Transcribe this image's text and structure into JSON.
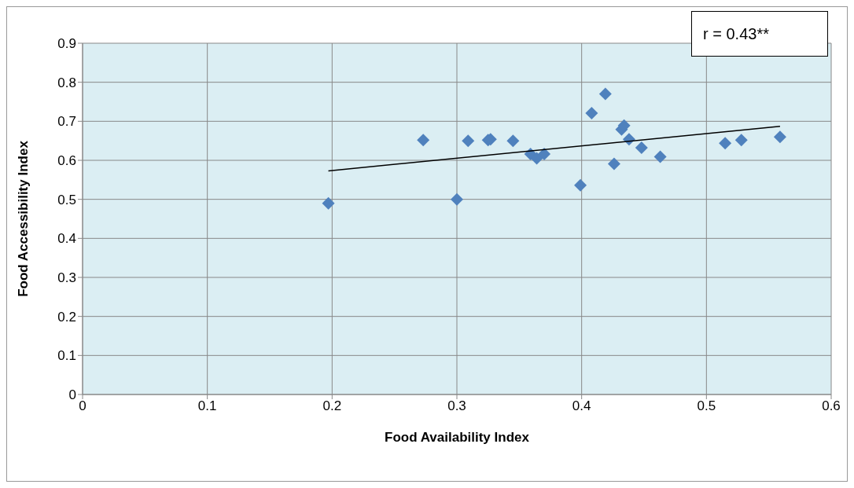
{
  "chart_data": {
    "type": "scatter",
    "xlabel": "Food Availability Index",
    "ylabel": "Food Accessibility Index",
    "annotations": [
      "r = 0.43**"
    ],
    "xlim": [
      0,
      0.6
    ],
    "xticks": [
      0,
      0.1,
      0.2,
      0.3,
      0.4,
      0.5,
      0.6
    ],
    "ylim": [
      0,
      0.9
    ],
    "yticks": [
      0,
      0.1,
      0.2,
      0.3,
      0.4,
      0.5,
      0.6,
      0.7,
      0.8,
      0.9
    ],
    "grid": true,
    "legend": false,
    "series": [
      {
        "marker": "diamond",
        "color": "#4f81bd",
        "x": [
          0.197,
          0.273,
          0.3,
          0.309,
          0.325,
          0.327,
          0.345,
          0.359,
          0.364,
          0.37,
          0.399,
          0.408,
          0.419,
          0.426,
          0.432,
          0.434,
          0.438,
          0.448,
          0.463,
          0.515,
          0.528,
          0.559
        ],
        "values": [
          0.49,
          0.652,
          0.5,
          0.65,
          0.652,
          0.654,
          0.65,
          0.616,
          0.605,
          0.616,
          0.536,
          0.721,
          0.77,
          0.591,
          0.679,
          0.689,
          0.654,
          0.632,
          0.609,
          0.644,
          0.652,
          0.66
        ]
      },
      {
        "type": "line",
        "marker": "none",
        "color": "#000000",
        "x": [
          0.197,
          0.559
        ],
        "values": [
          0.573,
          0.687
        ]
      }
    ]
  }
}
